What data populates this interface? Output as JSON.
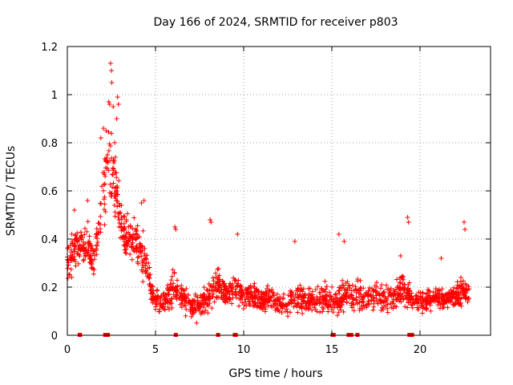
{
  "chart_data": {
    "type": "scatter",
    "title": "Day 166 of 2024, SRMTID for receiver p803",
    "xlabel": "GPS time / hours",
    "ylabel": "SRMTID / TECUs",
    "xlim": [
      0,
      24.0
    ],
    "ylim": [
      0,
      1.2
    ],
    "x_ticks": [
      0,
      5,
      10,
      15,
      20
    ],
    "y_ticks": [
      0,
      0.2,
      0.4,
      0.6,
      0.8,
      1,
      1.2
    ],
    "x_tick_labels": [
      "0",
      "5",
      "10",
      "15",
      "20"
    ],
    "y_tick_labels": [
      "0",
      "0.2",
      "0.4",
      "0.6",
      "0.8",
      "1",
      "1.2"
    ],
    "grid": true,
    "marker": "+",
    "color": "#ff0000",
    "envelope": {
      "description": "approximate median and spread of the point cloud vs hour",
      "hours": [
        0.0,
        0.5,
        1.0,
        1.5,
        2.0,
        2.3,
        2.5,
        2.8,
        3.0,
        3.3,
        3.6,
        4.0,
        4.4,
        4.8,
        5.0,
        5.5,
        6.0,
        6.5,
        7.0,
        7.5,
        8.0,
        8.5,
        9.0,
        9.5,
        10.0,
        10.5,
        11.0,
        11.5,
        12.0,
        12.5,
        13.0,
        13.5,
        14.0,
        14.5,
        15.0,
        15.5,
        16.0,
        16.5,
        17.0,
        17.5,
        18.0,
        18.5,
        19.0,
        19.5,
        20.0,
        20.5,
        21.0,
        21.5,
        22.0,
        22.5,
        22.8
      ],
      "median": [
        0.32,
        0.36,
        0.38,
        0.3,
        0.55,
        0.72,
        0.7,
        0.58,
        0.48,
        0.4,
        0.4,
        0.36,
        0.32,
        0.17,
        0.15,
        0.14,
        0.2,
        0.16,
        0.12,
        0.13,
        0.16,
        0.22,
        0.18,
        0.2,
        0.17,
        0.16,
        0.14,
        0.15,
        0.14,
        0.13,
        0.17,
        0.15,
        0.14,
        0.16,
        0.14,
        0.15,
        0.17,
        0.16,
        0.15,
        0.17,
        0.15,
        0.16,
        0.2,
        0.15,
        0.14,
        0.15,
        0.16,
        0.15,
        0.17,
        0.18,
        0.18
      ],
      "spread": [
        0.1,
        0.1,
        0.1,
        0.08,
        0.15,
        0.18,
        0.2,
        0.15,
        0.12,
        0.1,
        0.1,
        0.1,
        0.1,
        0.06,
        0.05,
        0.06,
        0.08,
        0.06,
        0.06,
        0.06,
        0.06,
        0.1,
        0.06,
        0.08,
        0.06,
        0.06,
        0.05,
        0.05,
        0.05,
        0.06,
        0.08,
        0.06,
        0.06,
        0.06,
        0.06,
        0.06,
        0.07,
        0.06,
        0.06,
        0.06,
        0.06,
        0.06,
        0.08,
        0.05,
        0.05,
        0.05,
        0.05,
        0.05,
        0.06,
        0.07,
        0.06
      ]
    },
    "outliers": [
      [
        2.45,
        1.13
      ],
      [
        2.5,
        1.1
      ],
      [
        2.52,
        1.05
      ],
      [
        2.35,
        0.97
      ],
      [
        2.4,
        0.96
      ],
      [
        2.6,
        0.95
      ],
      [
        2.85,
        0.99
      ],
      [
        2.9,
        0.96
      ],
      [
        2.8,
        0.9
      ],
      [
        2.05,
        0.86
      ],
      [
        2.2,
        0.85
      ],
      [
        1.9,
        0.82
      ],
      [
        0.4,
        0.52
      ],
      [
        1.15,
        0.56
      ],
      [
        4.35,
        0.56
      ],
      [
        4.2,
        0.55
      ],
      [
        6.1,
        0.45
      ],
      [
        6.15,
        0.44
      ],
      [
        8.1,
        0.48
      ],
      [
        8.15,
        0.47
      ],
      [
        9.65,
        0.42
      ],
      [
        12.9,
        0.39
      ],
      [
        15.4,
        0.42
      ],
      [
        15.7,
        0.39
      ],
      [
        19.3,
        0.49
      ],
      [
        19.35,
        0.47
      ],
      [
        22.5,
        0.47
      ],
      [
        22.55,
        0.44
      ],
      [
        21.2,
        0.32
      ],
      [
        18.9,
        0.33
      ]
    ],
    "zero_points": [
      0.7,
      0.72,
      2.15,
      2.3,
      6.15,
      8.55,
      9.5,
      9.55,
      15.05,
      15.1,
      15.95,
      16.1,
      16.45,
      19.4,
      19.45,
      19.55
    ],
    "total_points": 1800
  }
}
